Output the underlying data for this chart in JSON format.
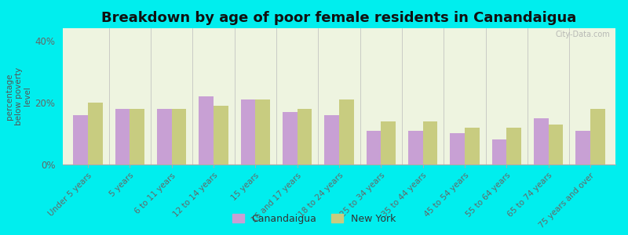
{
  "title": "Breakdown by age of poor female residents in Canandaigua",
  "categories": [
    "Under 5 years",
    "5 years",
    "6 to 11 years",
    "12 to 14 years",
    "15 years",
    "16 and 17 years",
    "18 to 24 years",
    "25 to 34 years",
    "35 to 44 years",
    "45 to 54 years",
    "55 to 64 years",
    "65 to 74 years",
    "75 years and over"
  ],
  "canandaigua": [
    16,
    18,
    18,
    22,
    21,
    17,
    16,
    11,
    11,
    10,
    8,
    15,
    11
  ],
  "new_york": [
    20,
    18,
    18,
    19,
    21,
    18,
    21,
    14,
    14,
    12,
    12,
    13,
    18
  ],
  "canandaigua_color": "#c8a0d4",
  "new_york_color": "#c8cc80",
  "ylabel": "percentage\nbelow poverty\nlevel",
  "ylim": [
    0,
    44
  ],
  "yticks": [
    0,
    20,
    40
  ],
  "ytick_labels": [
    "0%",
    "20%",
    "40%"
  ],
  "plot_bg_color": "#eef4e0",
  "outer_background": "#00eeee",
  "title_fontsize": 13,
  "watermark": "City-Data.com"
}
